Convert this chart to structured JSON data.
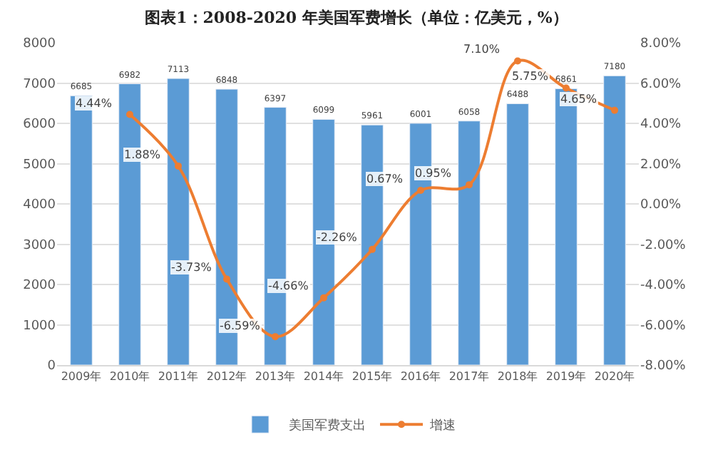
{
  "chart_data": {
    "type": "bar",
    "title": "图表1：2008-2020 年美国军费增长（单位：亿美元，%）",
    "categories": [
      "2009年",
      "2010年",
      "2011年",
      "2012年",
      "2013年",
      "2014年",
      "2015年",
      "2016年",
      "2017年",
      "2018年",
      "2019年",
      "2020年"
    ],
    "series": [
      {
        "name": "美国军费支出",
        "color": "#5b9bd5",
        "values": [
          6685,
          6982,
          7113,
          6848,
          6397,
          6099,
          5961,
          6001,
          6058,
          6488,
          6861,
          7180
        ],
        "value_labels": [
          "6685",
          "6982",
          "7113",
          "6848",
          "6397",
          "6099",
          "5961",
          "6001",
          "6058",
          "6488",
          "6861",
          "7180"
        ]
      },
      {
        "name": "增速",
        "type": "line",
        "axis": "y2",
        "color": "#ed7d31",
        "marker": "circle",
        "values": [
          null,
          4.44,
          1.88,
          -3.73,
          -6.59,
          -4.66,
          -2.26,
          0.67,
          0.95,
          7.1,
          5.75,
          4.65
        ],
        "value_labels": [
          null,
          "4.44%",
          "1.88%",
          "-3.73%",
          "-6.59%",
          "-4.66%",
          "-2.26%",
          "0.67%",
          "0.95%",
          "7.10%",
          "5.75%",
          "4.65%"
        ]
      }
    ],
    "ylim": [
      0,
      8000
    ],
    "yticks": [
      0,
      1000,
      2000,
      3000,
      4000,
      5000,
      6000,
      7000,
      8000
    ],
    "y2lim": [
      -8,
      8
    ],
    "y2ticks": [
      {
        "value": -8,
        "label": "-8.00%"
      },
      {
        "value": -6,
        "label": "-6.00%"
      },
      {
        "value": -4,
        "label": "-4.00%"
      },
      {
        "value": -2,
        "label": "-2.00%"
      },
      {
        "value": 0,
        "label": "0.00%"
      },
      {
        "value": 2,
        "label": "2.00%"
      },
      {
        "value": 4,
        "label": "4.00%"
      },
      {
        "value": 6,
        "label": "6.00%"
      },
      {
        "value": 8,
        "label": "8.00%"
      }
    ],
    "grid": "y",
    "legend": "bottom"
  }
}
